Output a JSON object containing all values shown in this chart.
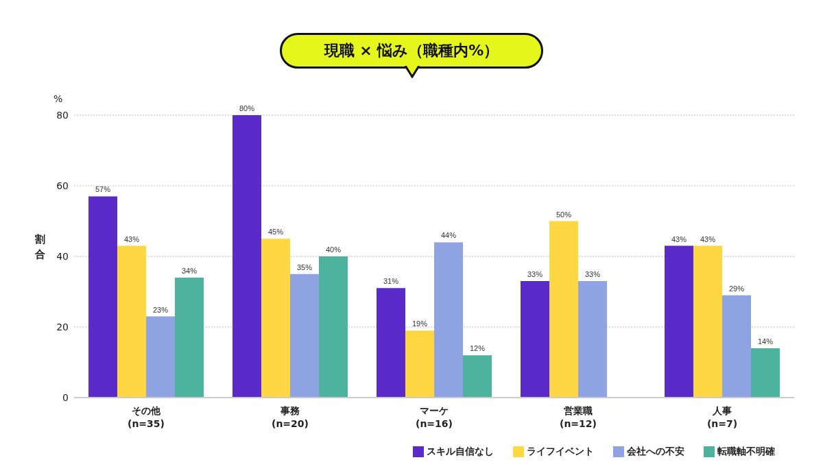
{
  "chart_data": {
    "type": "bar",
    "title": "現職 × 悩み（職種内%）",
    "ylabel": "割合",
    "annotations": [
      "%"
    ],
    "categories": [
      "その他\n(n=35)",
      "事務\n(n=20)",
      "マーケ\n(n=16)",
      "営業職\n(n=12)",
      "人事\n(n=7)"
    ],
    "series": [
      {
        "name": "スキル自信なし",
        "color": "#5b2bc9",
        "values": [
          57,
          80,
          31,
          33,
          43
        ],
        "value_labels": [
          "57%",
          "80%",
          "31%",
          "33%",
          "43%"
        ]
      },
      {
        "name": "ライフイベント",
        "color": "#fdd843",
        "values": [
          43,
          45,
          19,
          50,
          43
        ],
        "value_labels": [
          "43%",
          "45%",
          "19%",
          "50%",
          "43%"
        ]
      },
      {
        "name": "会社への不安",
        "color": "#8fa3e2",
        "values": [
          23,
          35,
          44,
          33,
          29
        ],
        "value_labels": [
          "23%",
          "35%",
          "44%",
          "33%",
          "29%"
        ]
      },
      {
        "name": "転職軸不明確",
        "color": "#4db39e",
        "values": [
          34,
          40,
          12,
          null,
          14
        ],
        "value_labels": [
          "34%",
          "40%",
          "12%",
          null,
          "14%"
        ]
      }
    ],
    "ylim": [
      0,
      80
    ],
    "yticks": [
      0,
      20,
      40,
      60,
      80
    ],
    "grid": "y",
    "legend": "bottom right"
  }
}
